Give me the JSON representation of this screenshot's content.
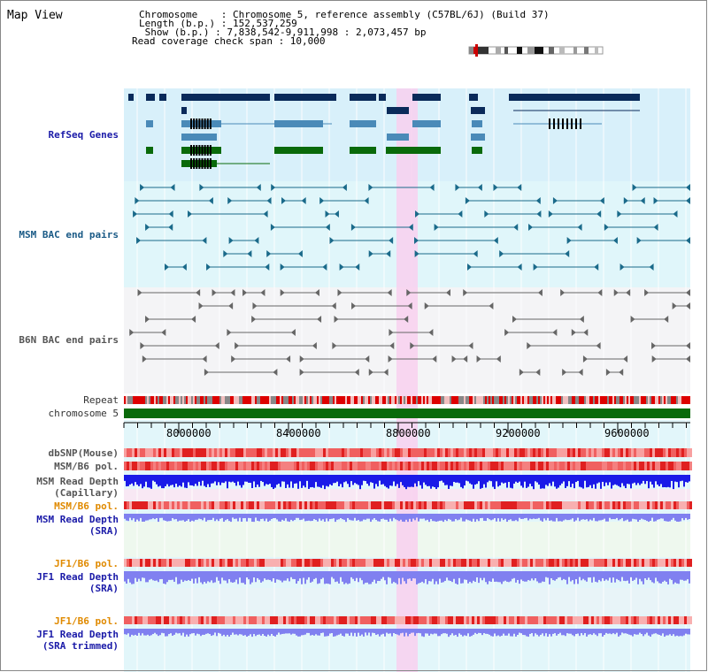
{
  "header": {
    "title": "Map View",
    "lines": [
      "Chromosome    : Chromosome 5, reference assembly (C57BL/6J) (Build 37)",
      "Length (b.p.) : 152,537,259",
      " Show (b.p.) : 7,838,542-9,911,998 : 2,073,457 bp",
      "Read coverage check span : 10,000"
    ]
  },
  "tracks": {
    "refseq": "RefSeq Genes",
    "msm_bac": "MSM BAC end pairs",
    "b6n_bac": "B6N BAC end pairs",
    "repeat": "Repeat",
    "chromosome": "chromosome 5",
    "dbsnp": "dbSNP(Mouse)",
    "msm_b6_pol": "MSM/B6 pol.",
    "msm_read_depth_cap_1": "MSM Read Depth",
    "msm_read_depth_cap_2": "(Capillary)",
    "msm_b6_pol_2": "MSM/B6 pol.",
    "msm_read_depth_sra_1": "MSM Read Depth",
    "msm_read_depth_sra_2": "(SRA)",
    "jf1_b6_pol": "JF1/B6 pol.",
    "jf1_read_depth_sra_1": "JF1 Read Depth",
    "jf1_read_depth_sra_2": "(SRA)",
    "jf1_b6_pol_2": "JF1/B6 pol.",
    "jf1_read_depth_trim_1": "JF1 Read Depth",
    "jf1_read_depth_trim_2": "(SRA trimmed)"
  },
  "axis": {
    "ticks": [
      "8000000",
      "8400000",
      "8800000",
      "9200000",
      "9600000"
    ]
  },
  "colors": {
    "refseq_bg": "#d8f0fa",
    "msm_bg": "#e0f6fa",
    "b6n_bg": "#f4f4f6",
    "highlight": "#f8d0ee",
    "gene_dark": "#0a2a5a",
    "gene_mid": "#4a8ab8",
    "gene_green": "#0a6a0a",
    "chrom_bar": "#0a6a0a",
    "depth_blue": "#1a1ae8",
    "depth_light": "#8080f0"
  }
}
